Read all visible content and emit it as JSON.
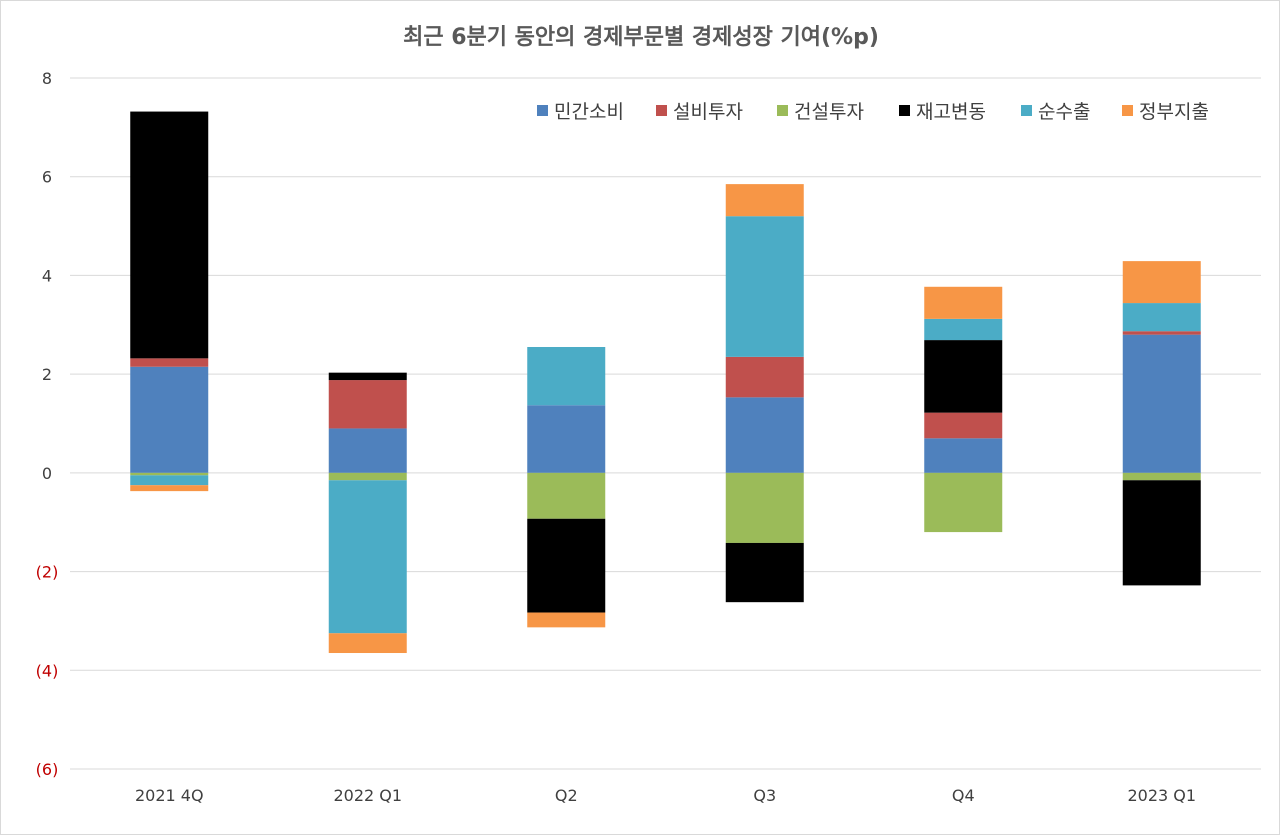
{
  "chart_data": {
    "type": "bar",
    "stacked": true,
    "title": "최근 6분기 동안의 경제부문별 경제성장 기여(%p)",
    "categories": [
      "2021 4Q",
      "2022 Q1",
      "Q2",
      "Q3",
      "Q4",
      "2023 Q1"
    ],
    "ylim": [
      -6,
      8
    ],
    "yticks": [
      8,
      6,
      4,
      2,
      0,
      -2,
      -4,
      -6
    ],
    "ytick_labels": [
      "8",
      "6",
      "4",
      "2",
      "0",
      "(2)",
      "(4)",
      "(6)"
    ],
    "negative_label_color": "#c00000",
    "grid": true,
    "legend_position": "top-right",
    "series": [
      {
        "name": "민간소비",
        "color": "#4f81bd",
        "values": [
          2.15,
          0.9,
          1.37,
          1.53,
          0.7,
          2.8
        ]
      },
      {
        "name": "설비투자",
        "color": "#c0504d",
        "values": [
          0.17,
          0.98,
          0.0,
          0.82,
          0.52,
          0.07
        ]
      },
      {
        "name": "건설투자",
        "color": "#9bbb59",
        "values": [
          -0.05,
          -0.15,
          -0.93,
          -1.42,
          -1.2,
          -0.15
        ]
      },
      {
        "name": "재고변동",
        "color": "#000000",
        "values": [
          5.0,
          0.15,
          -1.9,
          -1.2,
          1.47,
          -2.13
        ]
      },
      {
        "name": "순수출",
        "color": "#4bacc6",
        "values": [
          -0.2,
          -3.1,
          1.18,
          2.85,
          0.43,
          0.57
        ]
      },
      {
        "name": "정부지출",
        "color": "#f79646",
        "values": [
          -0.12,
          -0.4,
          -0.3,
          0.65,
          0.65,
          0.85
        ]
      }
    ]
  }
}
